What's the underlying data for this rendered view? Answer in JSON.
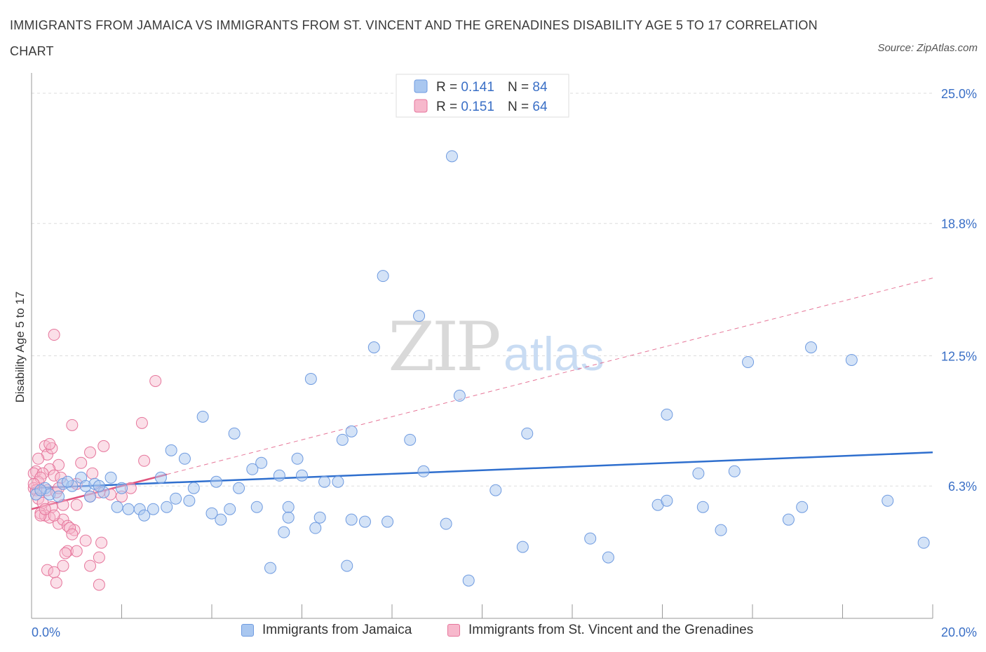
{
  "title": "IMMIGRANTS FROM JAMAICA VS IMMIGRANTS FROM ST. VINCENT AND THE GRENADINES DISABILITY AGE 5 TO 17 CORRELATION CHART",
  "source": "Source: ZipAtlas.com",
  "watermark": {
    "zip": "ZIP",
    "atlas": "atlas"
  },
  "colors": {
    "blue_fill": "#a9c7f0",
    "blue_stroke": "#6f9be0",
    "blue_line": "#2f6fce",
    "pink_fill": "#f7b8cc",
    "pink_stroke": "#e6769c",
    "pink_line": "#e0557f",
    "axis_label": "#3a6fc6",
    "grid": "#dddddd"
  },
  "legend_top": {
    "rows": [
      {
        "series": "jamaica",
        "r_label": "R = ",
        "r_value": "0.141",
        "n_label": "N = ",
        "n_value": "84"
      },
      {
        "series": "stvincent",
        "r_label": "R = ",
        "r_value": "0.151",
        "n_label": "N = ",
        "n_value": "64"
      }
    ]
  },
  "legend_bottom": [
    {
      "series": "jamaica",
      "label": "Immigrants from Jamaica"
    },
    {
      "series": "stvincent",
      "label": "Immigrants from St. Vincent and the Grenadines"
    }
  ],
  "chart_data": {
    "type": "scatter",
    "title": "IMMIGRANTS FROM JAMAICA VS IMMIGRANTS FROM ST. VINCENT AND THE GRENADINES DISABILITY AGE 5 TO 17 CORRELATION CHART",
    "xlabel": "",
    "ylabel": "Disability Age 5 to 17",
    "xlim": [
      0,
      20
    ],
    "ylim": [
      0,
      25.5
    ],
    "x_tick_labels": [
      {
        "value": 0,
        "label": "0.0%"
      },
      {
        "value": 20,
        "label": "20.0%"
      }
    ],
    "y_tick_labels": [
      {
        "value": 25.0,
        "label": "25.0%"
      },
      {
        "value": 18.8,
        "label": "18.8%"
      },
      {
        "value": 12.5,
        "label": "12.5%"
      },
      {
        "value": 6.3,
        "label": "6.3%"
      }
    ],
    "x_minor_ticks": [
      2,
      4,
      6,
      8,
      10,
      12,
      14,
      16,
      18,
      20
    ],
    "grid": true,
    "legend_position": "top-center",
    "series": [
      {
        "name": "Immigrants from Jamaica",
        "key": "jamaica",
        "r": 0.141,
        "n": 84,
        "trend": {
          "x": [
            0,
            20
          ],
          "y": [
            6.2,
            7.9
          ]
        },
        "points": [
          [
            9.33,
            22.0
          ],
          [
            7.8,
            16.3
          ],
          [
            8.6,
            14.4
          ],
          [
            7.6,
            12.9
          ],
          [
            6.2,
            11.4
          ],
          [
            9.5,
            10.6
          ],
          [
            17.3,
            12.9
          ],
          [
            15.9,
            12.2
          ],
          [
            18.2,
            12.3
          ],
          [
            14.1,
            9.7
          ],
          [
            3.8,
            9.6
          ],
          [
            4.5,
            8.8
          ],
          [
            7.1,
            8.9
          ],
          [
            6.9,
            8.5
          ],
          [
            8.4,
            8.5
          ],
          [
            11.0,
            8.8
          ],
          [
            3.1,
            8.0
          ],
          [
            3.4,
            7.6
          ],
          [
            5.1,
            7.4
          ],
          [
            5.9,
            7.6
          ],
          [
            4.9,
            7.1
          ],
          [
            8.7,
            7.0
          ],
          [
            14.8,
            6.9
          ],
          [
            15.6,
            7.0
          ],
          [
            1.76,
            6.7
          ],
          [
            2.87,
            6.7
          ],
          [
            1.1,
            6.7
          ],
          [
            5.5,
            6.8
          ],
          [
            6.0,
            6.8
          ],
          [
            6.5,
            6.5
          ],
          [
            6.8,
            6.5
          ],
          [
            4.1,
            6.5
          ],
          [
            0.3,
            6.2
          ],
          [
            0.7,
            6.4
          ],
          [
            0.9,
            6.3
          ],
          [
            1.2,
            6.3
          ],
          [
            1.4,
            6.4
          ],
          [
            2.0,
            6.2
          ],
          [
            3.6,
            6.2
          ],
          [
            4.6,
            6.2
          ],
          [
            10.3,
            6.1
          ],
          [
            0.4,
            5.9
          ],
          [
            0.6,
            5.8
          ],
          [
            1.3,
            5.8
          ],
          [
            1.6,
            6.0
          ],
          [
            3.2,
            5.7
          ],
          [
            3.5,
            5.6
          ],
          [
            1.9,
            5.3
          ],
          [
            2.15,
            5.2
          ],
          [
            2.4,
            5.2
          ],
          [
            2.7,
            5.2
          ],
          [
            3.0,
            5.3
          ],
          [
            4.0,
            5.0
          ],
          [
            4.4,
            5.2
          ],
          [
            5.0,
            5.3
          ],
          [
            5.7,
            5.3
          ],
          [
            2.5,
            4.9
          ],
          [
            4.2,
            4.7
          ],
          [
            5.7,
            4.8
          ],
          [
            6.4,
            4.8
          ],
          [
            7.1,
            4.7
          ],
          [
            7.4,
            4.6
          ],
          [
            7.9,
            4.6
          ],
          [
            13.9,
            5.4
          ],
          [
            14.1,
            5.6
          ],
          [
            14.9,
            5.3
          ],
          [
            16.8,
            4.7
          ],
          [
            17.1,
            5.3
          ],
          [
            19.0,
            5.6
          ],
          [
            5.6,
            4.1
          ],
          [
            6.3,
            4.3
          ],
          [
            9.2,
            4.5
          ],
          [
            15.3,
            4.2
          ],
          [
            12.4,
            3.8
          ],
          [
            10.9,
            3.4
          ],
          [
            19.8,
            3.6
          ],
          [
            5.3,
            2.4
          ],
          [
            7.0,
            2.5
          ],
          [
            12.8,
            2.9
          ],
          [
            9.7,
            1.8
          ],
          [
            0.1,
            5.9
          ],
          [
            0.2,
            6.1
          ],
          [
            0.8,
            6.5
          ],
          [
            1.5,
            6.3
          ]
        ]
      },
      {
        "name": "Immigrants from St. Vincent and the Grenadines",
        "key": "stvincent",
        "r": 0.151,
        "n": 64,
        "trend": {
          "x": [
            0,
            20
          ],
          "y": [
            5.2,
            16.2
          ]
        },
        "solid_trend_until_x": 3.0,
        "points": [
          [
            0.5,
            13.5
          ],
          [
            2.75,
            11.3
          ],
          [
            0.9,
            9.2
          ],
          [
            2.45,
            9.3
          ],
          [
            1.6,
            8.2
          ],
          [
            0.3,
            8.2
          ],
          [
            0.35,
            7.8
          ],
          [
            0.45,
            8.1
          ],
          [
            0.4,
            8.3
          ],
          [
            1.3,
            7.9
          ],
          [
            2.5,
            7.5
          ],
          [
            0.15,
            7.6
          ],
          [
            0.6,
            7.3
          ],
          [
            1.1,
            7.4
          ],
          [
            0.4,
            7.1
          ],
          [
            0.1,
            7.0
          ],
          [
            0.05,
            6.9
          ],
          [
            0.25,
            6.9
          ],
          [
            0.5,
            6.8
          ],
          [
            1.35,
            6.9
          ],
          [
            0.15,
            6.5
          ],
          [
            0.2,
            6.7
          ],
          [
            0.65,
            6.7
          ],
          [
            1.0,
            6.4
          ],
          [
            0.35,
            6.1
          ],
          [
            0.05,
            6.2
          ],
          [
            0.1,
            6.1
          ],
          [
            0.55,
            6.0
          ],
          [
            1.5,
            6.0
          ],
          [
            2.0,
            5.8
          ],
          [
            0.15,
            5.7
          ],
          [
            1.3,
            5.8
          ],
          [
            0.25,
            5.5
          ],
          [
            0.7,
            5.4
          ],
          [
            1.0,
            5.4
          ],
          [
            0.45,
            5.3
          ],
          [
            0.2,
            5.0
          ],
          [
            0.3,
            4.9
          ],
          [
            0.4,
            4.8
          ],
          [
            0.6,
            4.5
          ],
          [
            0.7,
            4.7
          ],
          [
            0.8,
            4.4
          ],
          [
            0.95,
            4.2
          ],
          [
            0.2,
            4.9
          ],
          [
            0.85,
            4.3
          ],
          [
            1.55,
            3.6
          ],
          [
            0.8,
            3.2
          ],
          [
            1.0,
            3.2
          ],
          [
            1.2,
            3.7
          ],
          [
            1.5,
            2.9
          ],
          [
            0.35,
            2.3
          ],
          [
            0.7,
            2.5
          ],
          [
            1.3,
            2.5
          ],
          [
            0.5,
            2.2
          ],
          [
            0.55,
            1.7
          ],
          [
            1.5,
            1.6
          ],
          [
            2.2,
            6.2
          ],
          [
            1.75,
            5.9
          ],
          [
            0.9,
            4.0
          ],
          [
            0.75,
            3.1
          ],
          [
            0.05,
            6.4
          ],
          [
            0.3,
            5.2
          ],
          [
            0.5,
            4.9
          ],
          [
            0.6,
            6.2
          ]
        ]
      }
    ]
  }
}
